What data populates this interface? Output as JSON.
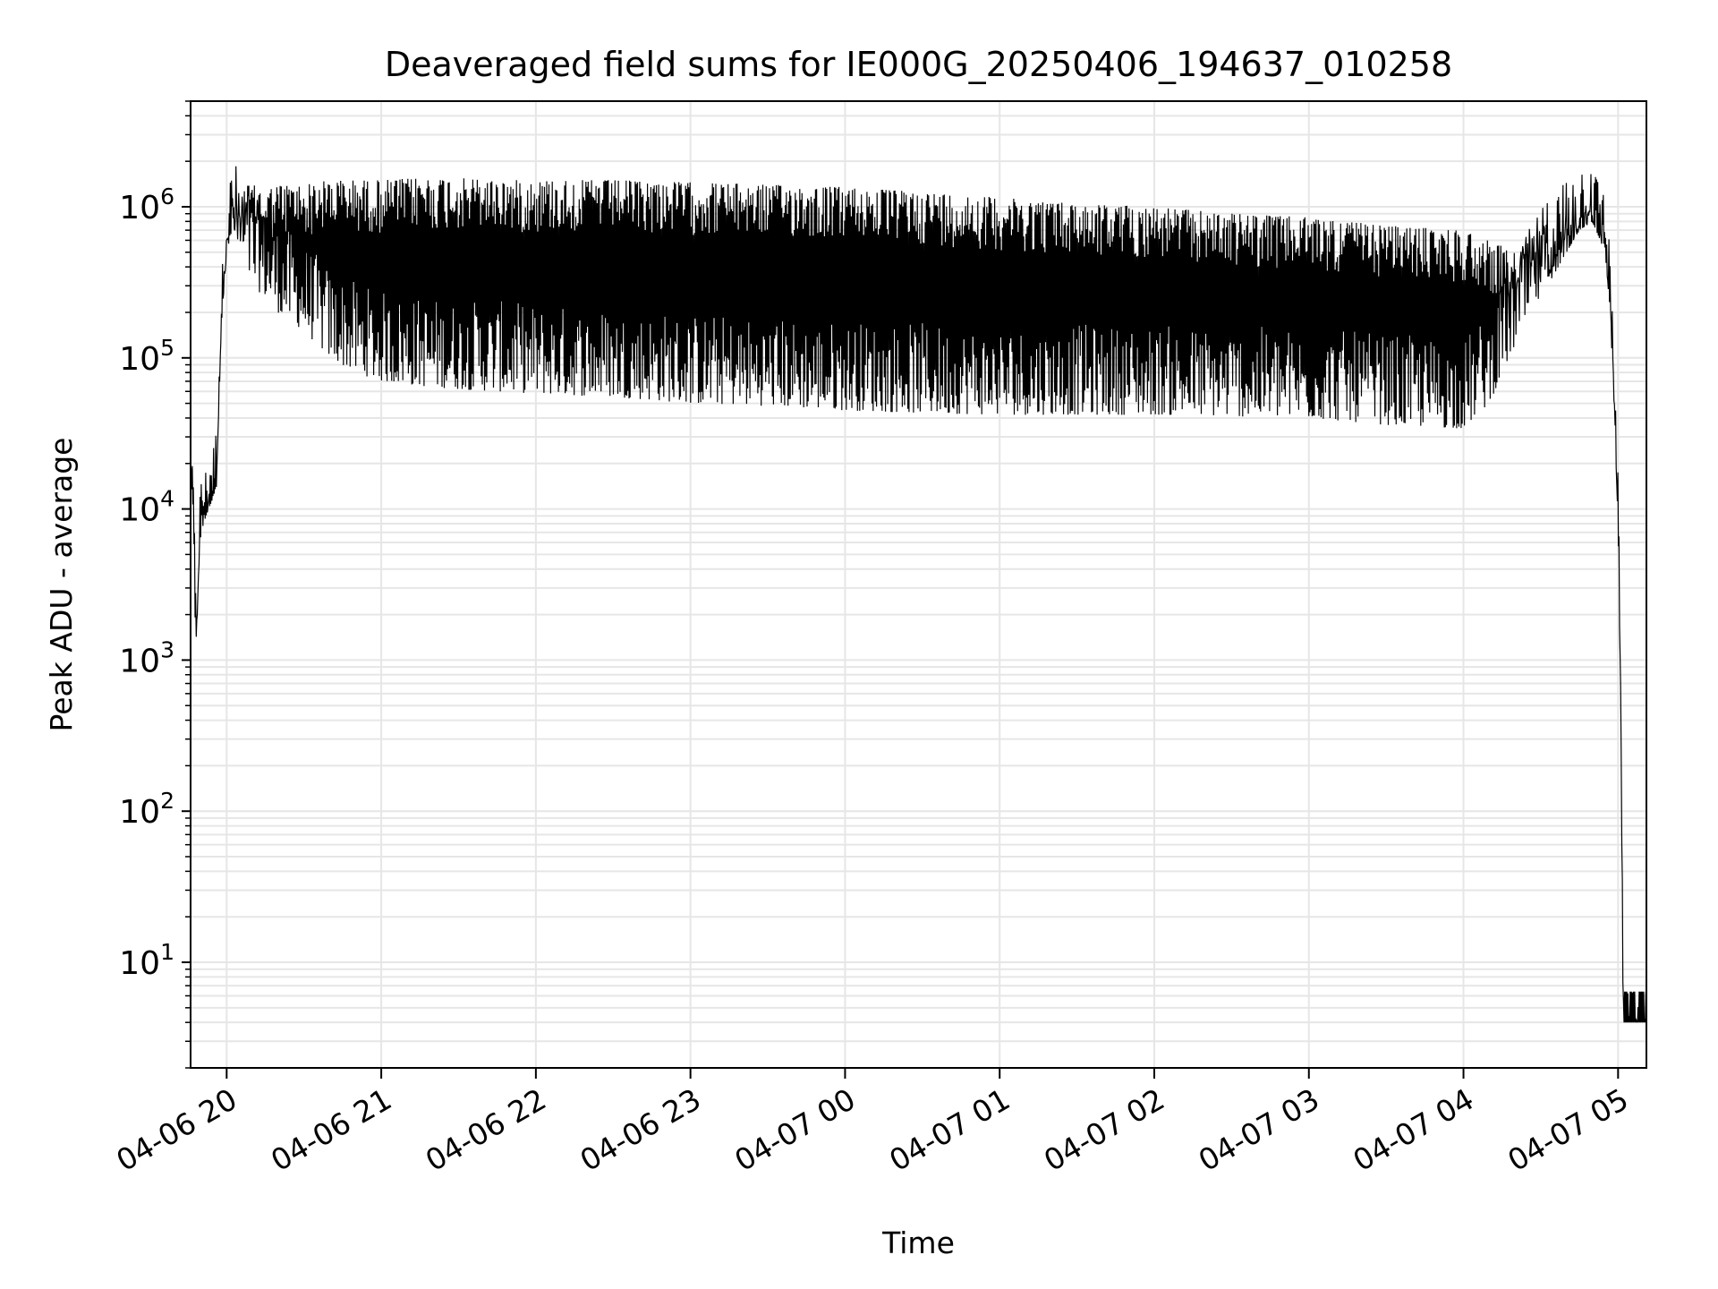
{
  "chart_data": {
    "type": "line",
    "title": "Deaveraged field sums for IE000G_20250406_194637_010258",
    "xlabel": "Time",
    "ylabel": "Peak ADU - average",
    "yscale": "log",
    "ylim": [
      2,
      5000000
    ],
    "xlim": [
      "2025-04-06 19:46",
      "2025-04-07 05:11"
    ],
    "grid": true,
    "line_color": "#000000",
    "grid_color": "#e6e6e6",
    "x_ticks": [
      {
        "label": "04-06 20",
        "value": "2025-04-06 20:00"
      },
      {
        "label": "04-06 21",
        "value": "2025-04-06 21:00"
      },
      {
        "label": "04-06 22",
        "value": "2025-04-06 22:00"
      },
      {
        "label": "04-06 23",
        "value": "2025-04-06 23:00"
      },
      {
        "label": "04-07 00",
        "value": "2025-04-07 00:00"
      },
      {
        "label": "04-07 01",
        "value": "2025-04-07 01:00"
      },
      {
        "label": "04-07 02",
        "value": "2025-04-07 02:00"
      },
      {
        "label": "04-07 03",
        "value": "2025-04-07 03:00"
      },
      {
        "label": "04-07 04",
        "value": "2025-04-07 04:00"
      },
      {
        "label": "04-07 05",
        "value": "2025-04-07 05:00"
      }
    ],
    "y_ticks": [
      {
        "base": "10",
        "exp": "1",
        "value": 10
      },
      {
        "base": "10",
        "exp": "2",
        "value": 100
      },
      {
        "base": "10",
        "exp": "3",
        "value": 1000
      },
      {
        "base": "10",
        "exp": "4",
        "value": 10000
      },
      {
        "base": "10",
        "exp": "5",
        "value": 100000
      },
      {
        "base": "10",
        "exp": "6",
        "value": 1000000
      }
    ],
    "series": [
      {
        "x": [
          "2025-04-06 19:46",
          "2025-04-06 19:47",
          "2025-04-06 19:48",
          "2025-04-06 19:49",
          "2025-04-06 19:50",
          "2025-04-06 19:52",
          "2025-04-06 19:54",
          "2025-04-06 19:56",
          "2025-04-06 19:57",
          "2025-04-06 19:58",
          "2025-04-06 19:59",
          "2025-04-06 20:00",
          "2025-04-06 20:02",
          "2025-04-06 20:04",
          "2025-04-06 20:06",
          "2025-04-06 20:08",
          "2025-04-06 20:10",
          "2025-04-06 20:15",
          "2025-04-06 20:20",
          "2025-04-06 20:30",
          "2025-04-06 20:40",
          "2025-04-06 20:50",
          "2025-04-06 21:00",
          "2025-04-06 21:15",
          "2025-04-06 21:30",
          "2025-04-06 21:45",
          "2025-04-06 22:00",
          "2025-04-06 22:30",
          "2025-04-06 23:00",
          "2025-04-06 23:30",
          "2025-04-07 00:00",
          "2025-04-07 00:30",
          "2025-04-07 01:00",
          "2025-04-07 01:30",
          "2025-04-07 02:00",
          "2025-04-07 02:30",
          "2025-04-07 03:00",
          "2025-04-07 03:30",
          "2025-04-07 04:00",
          "2025-04-07 04:10",
          "2025-04-07 04:20",
          "2025-04-07 04:30",
          "2025-04-07 04:40",
          "2025-04-07 04:45",
          "2025-04-07 04:50",
          "2025-04-07 04:55",
          "2025-04-07 04:57",
          "2025-04-07 04:59",
          "2025-04-07 05:00",
          "2025-04-07 05:01",
          "2025-04-07 05:02",
          "2025-04-07 05:04",
          "2025-04-07 05:06",
          "2025-04-07 05:08",
          "2025-04-07 05:11"
        ],
        "upper": [
          17000,
          10000,
          2000,
          5000,
          9000,
          11000,
          13000,
          20000,
          70000,
          200000,
          400000,
          700000,
          1000000,
          1200000,
          1300000,
          1400000,
          1400000,
          1300000,
          1400000,
          1400000,
          1500000,
          1500000,
          1500000,
          1550000,
          1550000,
          1500000,
          1500000,
          1500000,
          1450000,
          1400000,
          1350000,
          1250000,
          1150000,
          1050000,
          1000000,
          900000,
          850000,
          750000,
          700000,
          600000,
          500000,
          700000,
          900000,
          1000000,
          1100000,
          700000,
          300000,
          30000,
          10000,
          800,
          4,
          4,
          4,
          4,
          4
        ],
        "lower": [
          17000,
          10000,
          900,
          3000,
          7000,
          9000,
          11000,
          14000,
          50000,
          150000,
          300000,
          500000,
          700000,
          500000,
          400000,
          350000,
          300000,
          250000,
          200000,
          150000,
          100000,
          80000,
          70000,
          65000,
          62000,
          60000,
          58000,
          55000,
          50000,
          48000,
          45000,
          43000,
          42000,
          42000,
          42000,
          41000,
          40000,
          36000,
          34000,
          50000,
          120000,
          250000,
          500000,
          700000,
          800000,
          500000,
          200000,
          25000,
          8000,
          500,
          4,
          4,
          4,
          4,
          4
        ]
      }
    ]
  }
}
